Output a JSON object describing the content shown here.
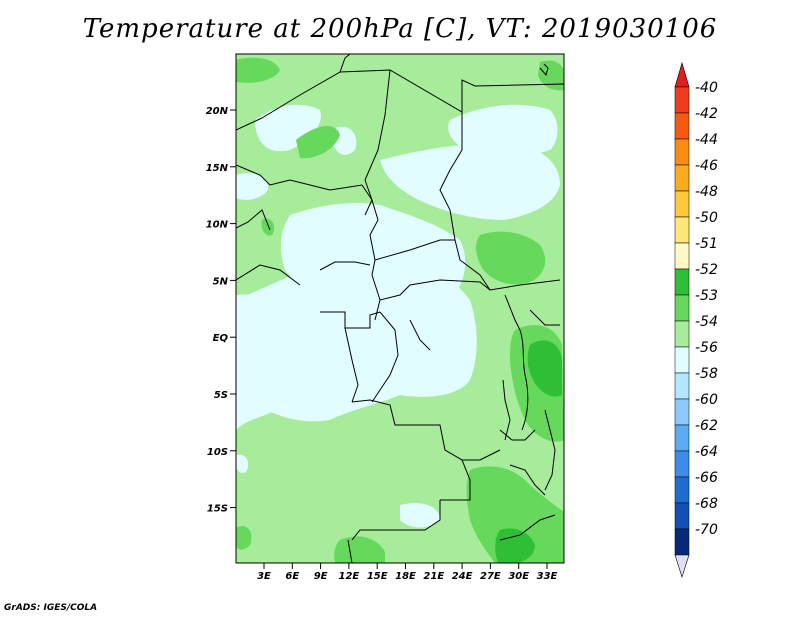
{
  "title": "Temperature at 200hPa [C], VT: 2019030106",
  "credit": "GrADS: IGES/COLA",
  "map": {
    "lat_ticks": [
      "20N",
      "15N",
      "10N",
      "5N",
      "EQ",
      "5S",
      "10S",
      "15S"
    ],
    "lon_ticks": [
      "3E",
      "6E",
      "9E",
      "12E",
      "15E",
      "18E",
      "21E",
      "24E",
      "27E",
      "30E",
      "33E"
    ]
  },
  "colorbar": {
    "levels": [
      {
        "label": "-40",
        "color": "#f03c1e"
      },
      {
        "label": "-42",
        "color": "#f65a0f"
      },
      {
        "label": "-44",
        "color": "#fa8c14"
      },
      {
        "label": "-46",
        "color": "#fcaa1e"
      },
      {
        "label": "-48",
        "color": "#fdc83c"
      },
      {
        "label": "-50",
        "color": "#fee678"
      },
      {
        "label": "-51",
        "color": "#fffac8"
      },
      {
        "label": "-52",
        "color": "#2fbf36"
      },
      {
        "label": "-53",
        "color": "#66d85c"
      },
      {
        "label": "-54",
        "color": "#a6ec9a"
      },
      {
        "label": "-56",
        "color": "#e2fdff"
      },
      {
        "label": "-58",
        "color": "#b4e6ff"
      },
      {
        "label": "-60",
        "color": "#8cc8ff"
      },
      {
        "label": "-62",
        "color": "#5aaaf5"
      },
      {
        "label": "-64",
        "color": "#3c8ce8"
      },
      {
        "label": "-66",
        "color": "#1e6ed2"
      },
      {
        "label": "-68",
        "color": "#1450b4"
      },
      {
        "label": "-70",
        "color": "#0a2878"
      }
    ],
    "top_triangle_color": "#e11e1e",
    "bottom_triangle_color": "#e1e1f5"
  }
}
